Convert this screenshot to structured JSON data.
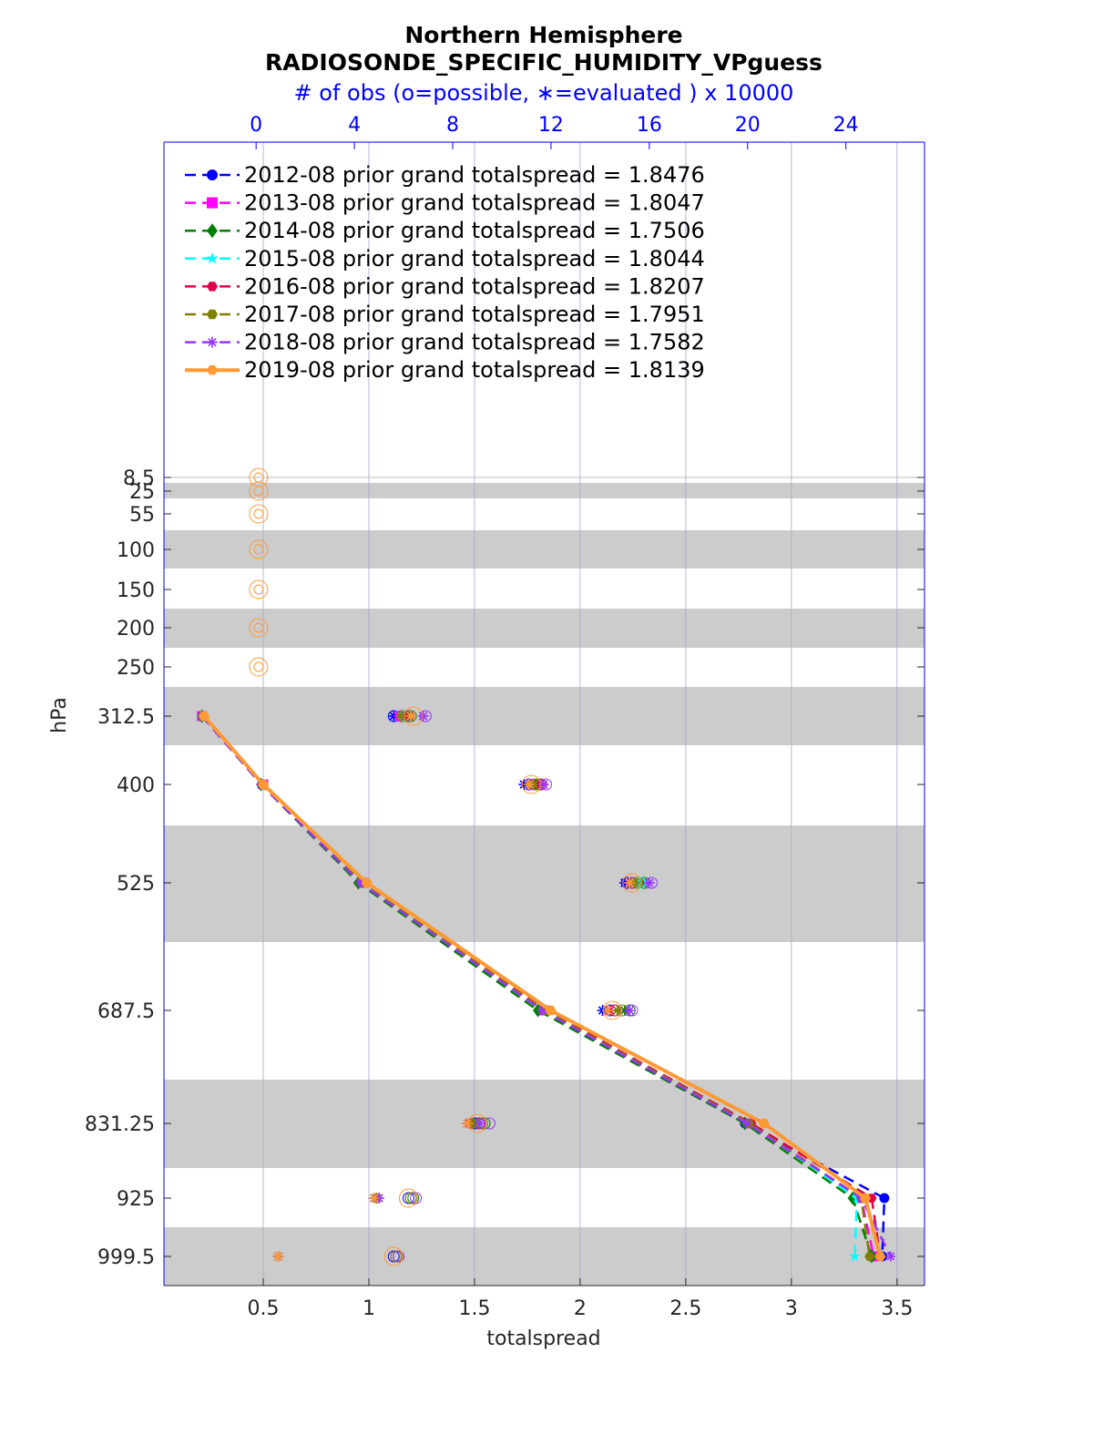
{
  "chart_data": {
    "type": "line",
    "title": "Northern Hemisphere",
    "subtitle": "RADIOSONDE_SPECIFIC_HUMIDITY_VPguess",
    "top_axis_label": "# of obs (o=possible, ∗=evaluated ) x 10000",
    "xlabel": "totalspread",
    "ylabel": "hPa",
    "xlim": [
      0.03,
      3.63
    ],
    "x_ticks": [
      "0.5",
      "1",
      "1.5",
      "2",
      "2.5",
      "3",
      "3.5"
    ],
    "top_xlim": [
      -3.75,
      27.2
    ],
    "top_ticks": [
      "0",
      "4",
      "8",
      "12",
      "16",
      "20",
      "24"
    ],
    "levels": [
      8.5,
      25,
      55,
      100,
      150,
      200,
      250,
      312.5,
      400,
      525,
      687.5,
      831.25,
      925,
      999.5
    ],
    "level_labels": [
      "8.5",
      "25",
      "55",
      "100",
      "150",
      "200",
      "250",
      "312.5",
      "400",
      "525",
      "687.5",
      "831.25",
      "925",
      "999.5"
    ],
    "grid": "vertical",
    "legend_placement": "top-left",
    "series": [
      {
        "name": "2012-08 prior grand totalspread = 1.8476",
        "color": "#0000ff",
        "marker": "circle",
        "spread": [
          0.21,
          0.5,
          0.97,
          1.83,
          2.78,
          3.44,
          3.43
        ],
        "obs_possible": [
          0,
          0,
          0,
          0,
          0,
          0,
          0,
          5.6,
          11.1,
          15.1,
          14.4,
          8.9,
          6.2,
          5.6
        ],
        "obs_evaluated": [
          0,
          0,
          0,
          0,
          0,
          0,
          0,
          5.6,
          10.9,
          15.0,
          14.1,
          8.6,
          4.8,
          0.9
        ]
      },
      {
        "name": "2013-08 prior grand totalspread = 1.8047",
        "color": "#ff00ff",
        "marker": "square",
        "spread": [
          0.21,
          0.5,
          0.97,
          1.83,
          2.8,
          3.33,
          3.39
        ],
        "obs_possible": [
          0,
          0,
          0,
          0,
          0,
          0,
          0,
          5.9,
          11.3,
          15.3,
          14.6,
          9.1,
          6.3,
          5.7
        ],
        "obs_evaluated": [
          0,
          0,
          0,
          0,
          0,
          0,
          0,
          5.8,
          11.2,
          15.2,
          14.4,
          8.7,
          4.9,
          0.9
        ]
      },
      {
        "name": "2014-08 prior grand totalspread = 1.7506",
        "color": "#008000",
        "marker": "diamond",
        "spread": [
          0.21,
          0.49,
          0.95,
          1.8,
          2.78,
          3.29,
          3.38
        ],
        "obs_possible": [
          0,
          0,
          0,
          0,
          0,
          0,
          0,
          6.3,
          11.5,
          15.8,
          15.2,
          9.3,
          6.4,
          5.8
        ],
        "obs_evaluated": [
          0,
          0,
          0,
          0,
          0,
          0,
          0,
          6.2,
          11.4,
          15.7,
          15.0,
          8.9,
          4.9,
          0.9
        ]
      },
      {
        "name": "2015-08 prior grand totalspread = 1.8044",
        "color": "#00ffff",
        "marker": "star",
        "spread": [
          0.21,
          0.5,
          0.97,
          1.83,
          2.8,
          3.31,
          3.3
        ],
        "obs_possible": [
          0,
          0,
          0,
          0,
          0,
          0,
          0,
          6.1,
          11.4,
          15.6,
          14.9,
          9.2,
          6.3,
          5.7
        ],
        "obs_evaluated": [
          0,
          0,
          0,
          0,
          0,
          0,
          0,
          6.0,
          11.3,
          15.5,
          14.7,
          8.8,
          4.9,
          0.9
        ]
      },
      {
        "name": "2016-08 prior grand totalspread = 1.8207",
        "color": "#e0004a",
        "marker": "hexagon",
        "spread": [
          0.21,
          0.5,
          0.97,
          1.84,
          2.81,
          3.38,
          3.42
        ],
        "obs_possible": [
          0,
          0,
          0,
          0,
          0,
          0,
          0,
          6.2,
          11.6,
          15.3,
          14.6,
          9.1,
          6.3,
          5.7
        ],
        "obs_evaluated": [
          0,
          0,
          0,
          0,
          0,
          0,
          0,
          6.1,
          11.5,
          15.2,
          14.4,
          8.7,
          4.9,
          0.9
        ]
      },
      {
        "name": "2017-08 prior grand totalspread = 1.7951",
        "color": "#808000",
        "marker": "hexagon",
        "spread": [
          0.21,
          0.5,
          0.97,
          1.83,
          2.8,
          3.33,
          3.37
        ],
        "obs_possible": [
          0,
          0,
          0,
          0,
          0,
          0,
          0,
          6.0,
          11.4,
          15.5,
          14.9,
          9.2,
          6.3,
          5.7
        ],
        "obs_evaluated": [
          0,
          0,
          0,
          0,
          0,
          0,
          0,
          5.9,
          11.3,
          15.4,
          14.7,
          8.8,
          4.9,
          0.9
        ]
      },
      {
        "name": "2018-08 prior grand totalspread = 1.7582",
        "color": "#9933ff",
        "marker": "asterisk",
        "spread": [
          0.21,
          0.49,
          0.96,
          1.82,
          2.79,
          3.33,
          3.47
        ],
        "obs_possible": [
          0,
          0,
          0,
          0,
          0,
          0,
          0,
          6.9,
          11.8,
          16.1,
          15.3,
          9.5,
          6.5,
          5.8
        ],
        "obs_evaluated": [
          0,
          0,
          0,
          0,
          0,
          0,
          0,
          6.8,
          11.7,
          16.0,
          15.2,
          9.1,
          5.0,
          0.9
        ]
      },
      {
        "name": "2019-08 prior grand totalspread = 1.8139",
        "color": "#ff9933",
        "marker": "hexagon",
        "spread": [
          0.22,
          0.5,
          0.99,
          1.86,
          2.87,
          3.35,
          3.42
        ],
        "obs_possible": [
          0.1,
          0.1,
          0.1,
          0.1,
          0.1,
          0.1,
          0.1,
          6.4,
          11.2,
          15.3,
          14.5,
          9.0,
          6.2,
          5.6
        ],
        "obs_evaluated": [
          0,
          0,
          0,
          0,
          0,
          0,
          0,
          6.3,
          11.1,
          15.2,
          14.3,
          8.6,
          4.8,
          0.9
        ]
      }
    ],
    "line_levels": [
      312.5,
      400,
      525,
      687.5,
      831.25,
      925,
      999.5
    ]
  }
}
